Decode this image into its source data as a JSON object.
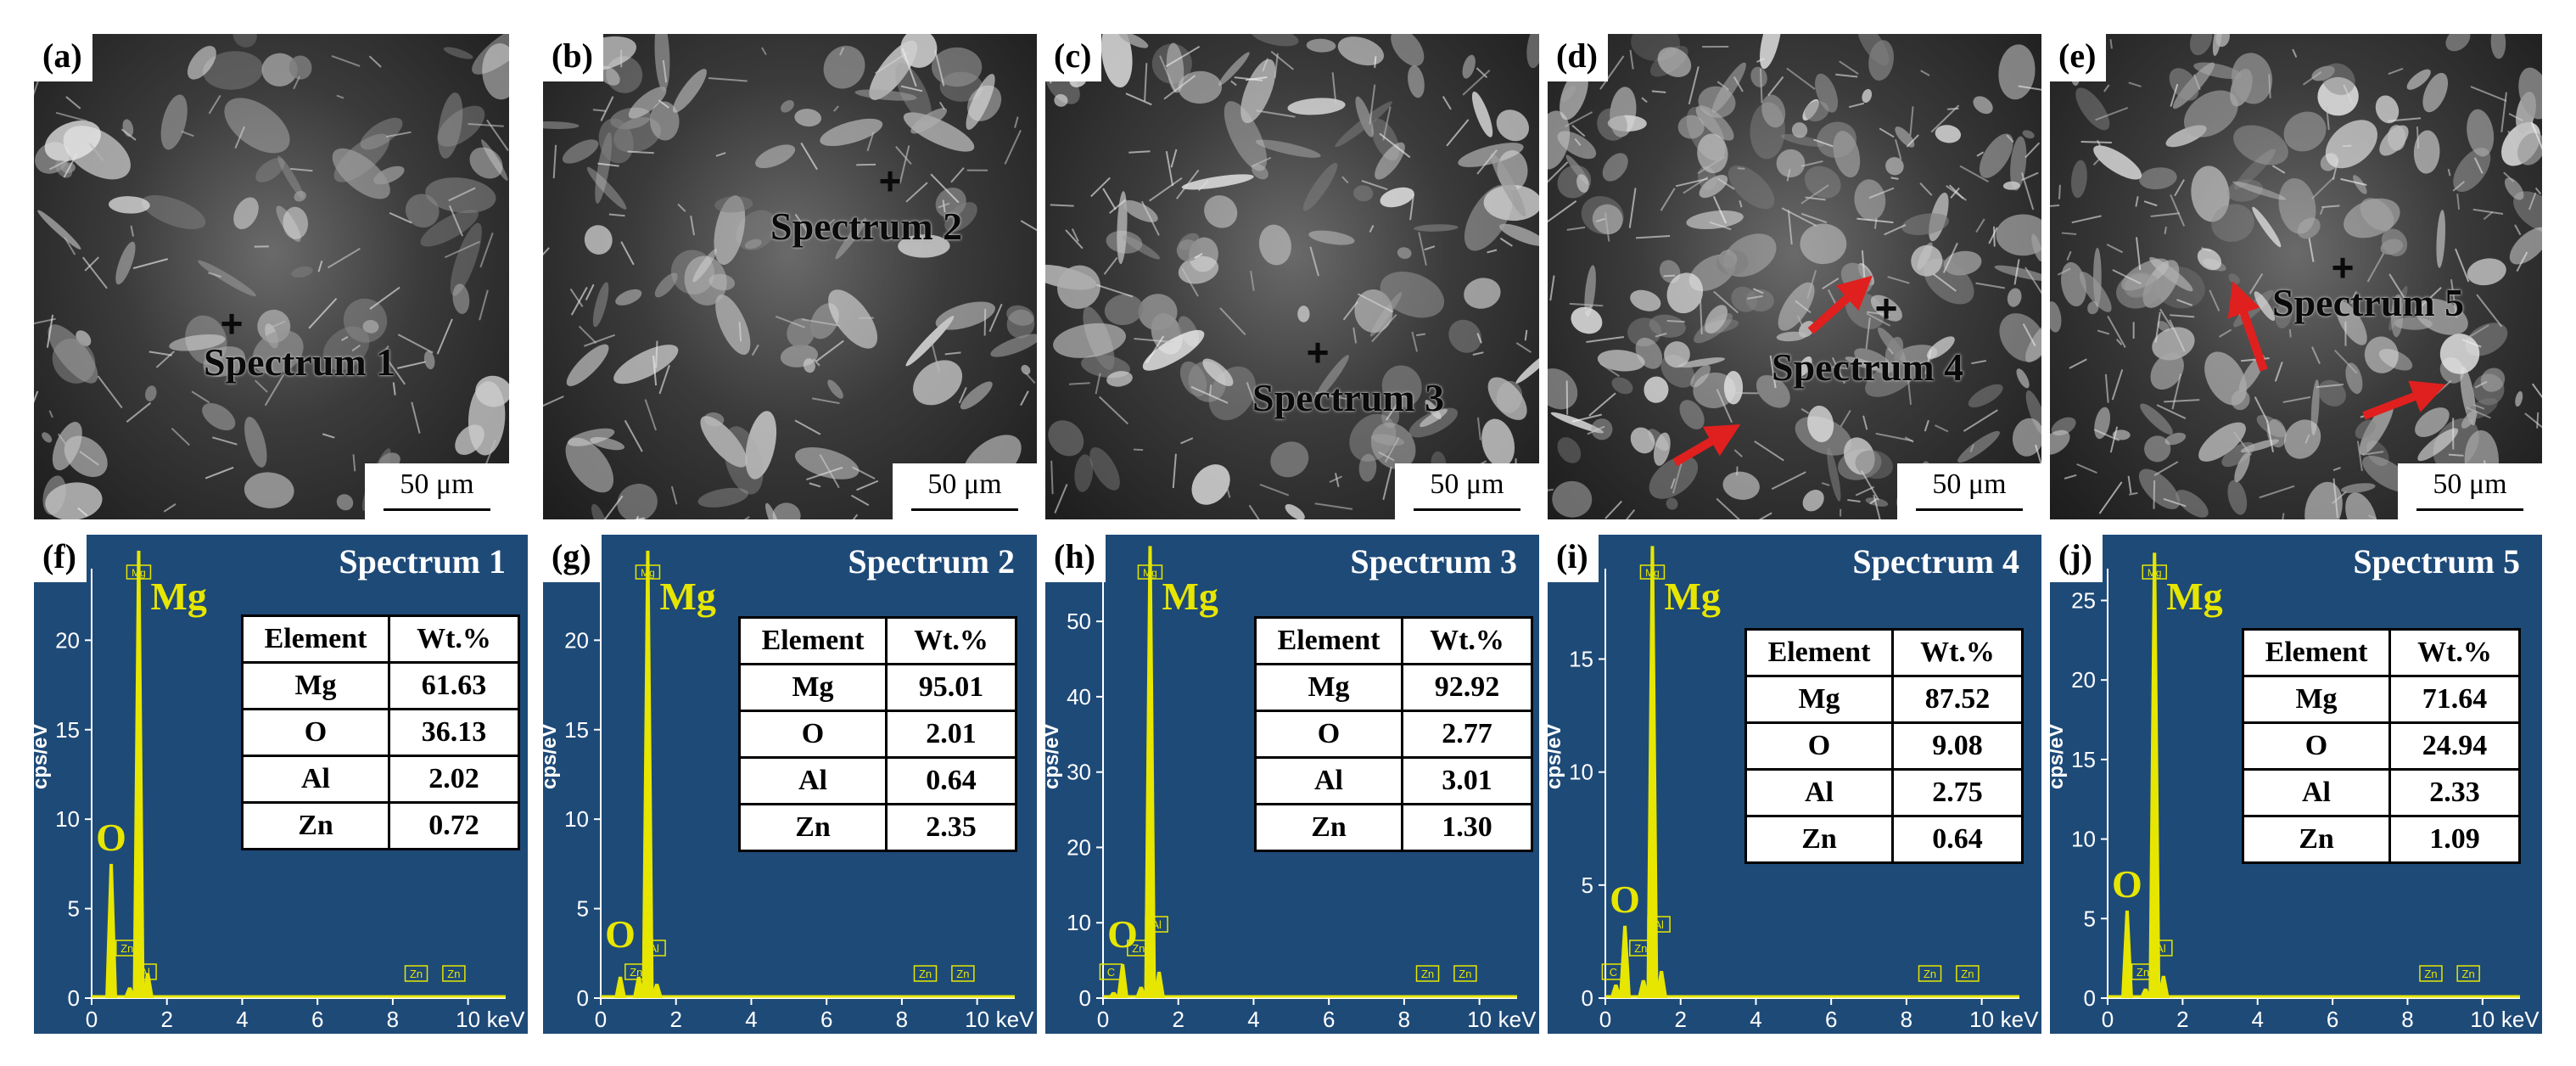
{
  "sem_panels": [
    {
      "label": "(a)",
      "scale": "50 μm",
      "spectrum": "Spectrum 1"
    },
    {
      "label": "(b)",
      "scale": "50 μm",
      "spectrum": "Spectrum 2"
    },
    {
      "label": "(c)",
      "scale": "50 μm",
      "spectrum": "Spectrum 3"
    },
    {
      "label": "(d)",
      "scale": "50 μm",
      "spectrum": "Spectrum 4"
    },
    {
      "label": "(e)",
      "scale": "50 μm",
      "spectrum": "Spectrum 5"
    }
  ],
  "eds_panels": [
    {
      "label": "(f)",
      "title": "Spectrum 1",
      "ylabel": "cps/eV",
      "yticks": [
        "0",
        "5",
        "10",
        "15",
        "20"
      ],
      "ymax": 24,
      "peaks": {
        "O": 7.5,
        "Mg": 25,
        "Al": 1.4,
        "Zn": 0.6,
        "C": 0
      },
      "peak_labels": [
        "Mg",
        "O",
        "Al",
        "Zn",
        "Zn",
        "Zn"
      ],
      "table": {
        "headers": [
          "Element",
          "Wt.%"
        ],
        "rows": [
          [
            "Mg",
            "61.63"
          ],
          [
            "O",
            "36.13"
          ],
          [
            "Al",
            "2.02"
          ],
          [
            "Zn",
            "0.72"
          ]
        ]
      }
    },
    {
      "label": "(g)",
      "title": "Spectrum 2",
      "ylabel": "cps/eV",
      "yticks": [
        "0",
        "5",
        "10",
        "15",
        "20"
      ],
      "ymax": 24,
      "peaks": {
        "O": 1.2,
        "Mg": 25,
        "Al": 0.8,
        "Zn": 1.2,
        "C": 0
      },
      "peak_labels": [
        "Mg",
        "O",
        "Zn",
        "Al",
        "Zn",
        "Zn"
      ],
      "table": {
        "headers": [
          "Element",
          "Wt.%"
        ],
        "rows": [
          [
            "Mg",
            "95.01"
          ],
          [
            "O",
            "2.01"
          ],
          [
            "Al",
            "0.64"
          ],
          [
            "Zn",
            "2.35"
          ]
        ]
      }
    },
    {
      "label": "(h)",
      "title": "Spectrum 3",
      "ylabel": "cps/eV",
      "yticks": [
        "0",
        "10",
        "20",
        "30",
        "40",
        "50"
      ],
      "ymax": 57,
      "peaks": {
        "O": 4.5,
        "Mg": 60,
        "Al": 3.5,
        "Zn": 1.5,
        "C": 0.8
      },
      "peak_labels": [
        "Mg",
        "O",
        "C",
        "Zn",
        "Al",
        "Zn",
        "Zn"
      ],
      "table": {
        "headers": [
          "Element",
          "Wt.%"
        ],
        "rows": [
          [
            "Mg",
            "92.92"
          ],
          [
            "O",
            "2.77"
          ],
          [
            "Al",
            "3.01"
          ],
          [
            "Zn",
            "1.30"
          ]
        ]
      }
    },
    {
      "label": "(i)",
      "title": "Spectrum 4",
      "ylabel": "cps/eV",
      "yticks": [
        "0",
        "5",
        "10",
        "15"
      ],
      "ymax": 19,
      "peaks": {
        "O": 3.2,
        "Mg": 20,
        "Al": 1.2,
        "Zn": 0.8,
        "C": 0.6
      },
      "peak_labels": [
        "Mg",
        "O",
        "C",
        "Zn",
        "Al",
        "Zn",
        "Zn"
      ],
      "table": {
        "headers": [
          "Element",
          "Wt.%"
        ],
        "rows": [
          [
            "Mg",
            "87.52"
          ],
          [
            "O",
            "9.08"
          ],
          [
            "Al",
            "2.75"
          ],
          [
            "Zn",
            "0.64"
          ]
        ]
      }
    },
    {
      "label": "(j)",
      "title": "Spectrum 5",
      "ylabel": "cps/eV",
      "yticks": [
        "0",
        "5",
        "10",
        "15",
        "20",
        "25"
      ],
      "ymax": 27,
      "peaks": {
        "O": 5.5,
        "Mg": 28,
        "Al": 1.4,
        "Zn": 0.6,
        "C": 0
      },
      "peak_labels": [
        "Mg",
        "O",
        "Zn",
        "Al",
        "Zn",
        "Zn"
      ],
      "table": {
        "headers": [
          "Element",
          "Wt.%"
        ],
        "rows": [
          [
            "Mg",
            "71.64"
          ],
          [
            "O",
            "24.94"
          ],
          [
            "Al",
            "2.33"
          ],
          [
            "Zn",
            "1.09"
          ]
        ]
      }
    }
  ],
  "xaxis": {
    "ticks": [
      "0",
      "2",
      "4",
      "6",
      "8",
      "10"
    ],
    "unit": "keV",
    "xmax": 11
  },
  "colors": {
    "plot_bg": "#1e4a78",
    "spectrum": "#e6e600",
    "axis": "#ffffff",
    "arrow": "#e0201e"
  }
}
